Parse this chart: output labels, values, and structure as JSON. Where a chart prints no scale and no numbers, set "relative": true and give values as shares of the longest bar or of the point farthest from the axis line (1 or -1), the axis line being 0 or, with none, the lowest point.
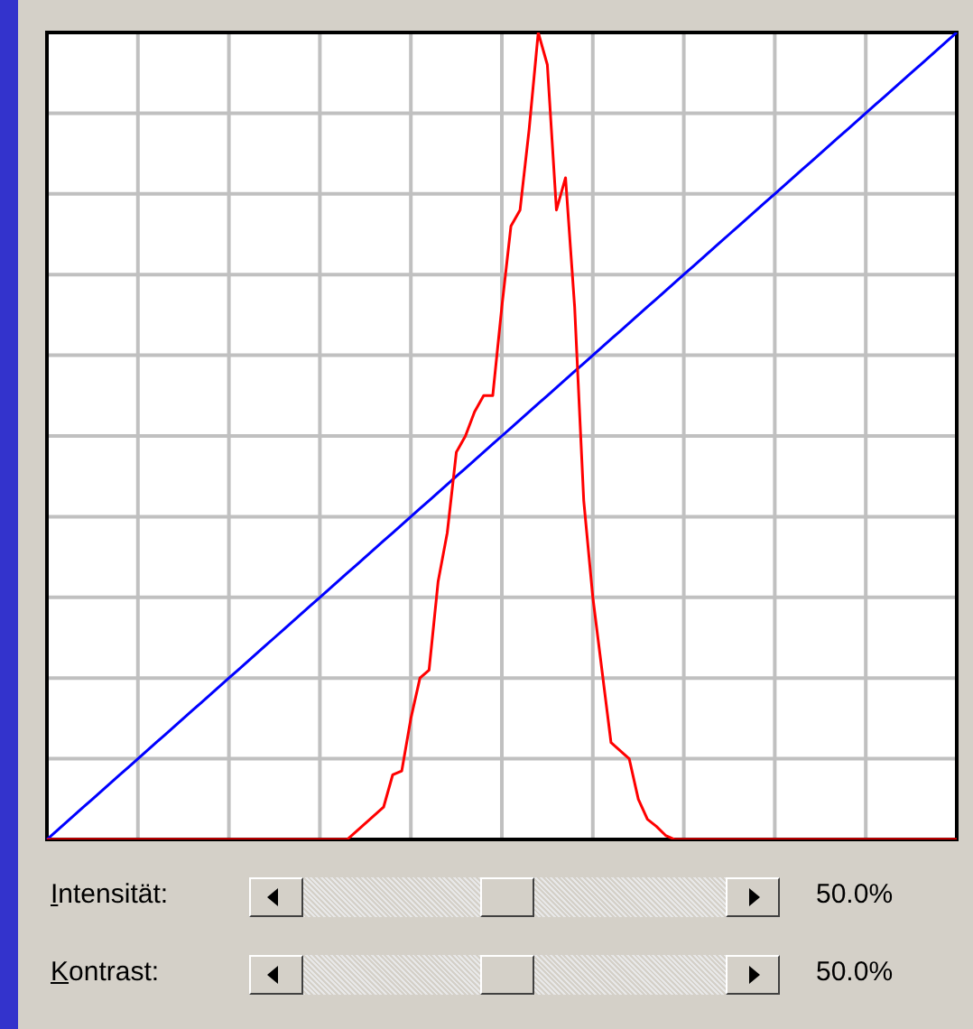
{
  "chart_data": {
    "type": "line",
    "relative": true,
    "grid": true,
    "marker": "none",
    "categories": [
      null,
      null,
      null,
      null,
      null,
      null,
      null,
      null,
      null,
      null,
      null,
      null,
      null,
      null,
      null,
      null,
      null,
      null,
      null,
      null,
      null,
      null,
      null,
      null,
      null,
      null,
      null,
      null,
      null,
      null,
      null,
      null,
      null,
      null,
      null,
      null,
      null,
      null,
      null,
      null,
      null,
      null,
      null,
      null,
      null,
      null,
      null,
      null,
      null,
      null,
      null,
      null,
      null,
      null,
      null,
      null,
      null,
      null,
      null,
      null,
      null,
      null,
      null,
      null,
      null,
      null,
      null,
      null,
      null,
      null,
      null,
      null,
      null,
      null,
      null,
      null,
      null,
      null,
      null,
      null,
      null,
      null,
      null,
      null,
      null,
      null,
      null,
      null,
      null,
      null,
      null,
      null,
      null,
      null,
      null,
      null,
      null,
      null,
      null,
      null,
      null
    ],
    "series": [
      {
        "color": "#ff0000",
        "values": [
          0,
          0,
          0,
          0,
          0,
          0,
          0,
          0,
          0,
          0,
          0,
          0,
          0,
          0,
          0,
          0,
          0,
          0,
          0,
          0,
          0,
          0,
          0,
          0,
          0,
          0,
          0,
          0,
          0,
          0,
          0,
          0,
          0,
          0,
          0.01,
          0.02,
          0.03,
          0.04,
          0.08,
          0.085,
          0.15,
          0.2,
          0.21,
          0.32,
          0.38,
          0.48,
          0.5,
          0.53,
          0.55,
          0.55,
          0.66,
          0.76,
          0.78,
          0.88,
          1,
          0.96,
          0.78,
          0.82,
          0.66,
          0.42,
          0.3,
          0.21,
          0.12,
          0.11,
          0.1,
          0.05,
          0.025,
          0.016,
          0.005,
          0,
          0,
          0,
          0,
          0,
          0,
          0,
          0,
          0,
          0,
          0,
          0,
          0,
          0,
          0,
          0,
          0,
          0,
          0,
          0,
          0,
          0,
          0,
          0,
          0,
          0,
          0,
          0,
          0,
          0,
          0,
          0
        ]
      },
      {
        "color": "#0000ff",
        "values": [
          0,
          0.01,
          0.02,
          0.03,
          0.04,
          0.05,
          0.06,
          0.07,
          0.08,
          0.09,
          0.1,
          0.11,
          0.12,
          0.13,
          0.14,
          0.15,
          0.16,
          0.17,
          0.18,
          0.19,
          0.2,
          0.21,
          0.22,
          0.23,
          0.24,
          0.25,
          0.26,
          0.27,
          0.28,
          0.29,
          0.3,
          0.31,
          0.32,
          0.33,
          0.34,
          0.35,
          0.36,
          0.37,
          0.38,
          0.39,
          0.4,
          0.41,
          0.42,
          0.43,
          0.44,
          0.45,
          0.46,
          0.47,
          0.48,
          0.49,
          0.5,
          0.51,
          0.52,
          0.53,
          0.54,
          0.55,
          0.56,
          0.57,
          0.58,
          0.59,
          0.6,
          0.61,
          0.62,
          0.63,
          0.64,
          0.65,
          0.66,
          0.67,
          0.68,
          0.69,
          0.7,
          0.71,
          0.72,
          0.73,
          0.74,
          0.75,
          0.76,
          0.77,
          0.78,
          0.79,
          0.8,
          0.81,
          0.82,
          0.83,
          0.84,
          0.85,
          0.86,
          0.87,
          0.88,
          0.89,
          0.9,
          0.91,
          0.92,
          0.93,
          0.94,
          0.95,
          0.96,
          0.97,
          0.98,
          0.99,
          1
        ]
      }
    ],
    "annotations": [
      "Intensität:",
      "50.0%",
      "Kontrast:",
      "50.0%"
    ]
  }
}
